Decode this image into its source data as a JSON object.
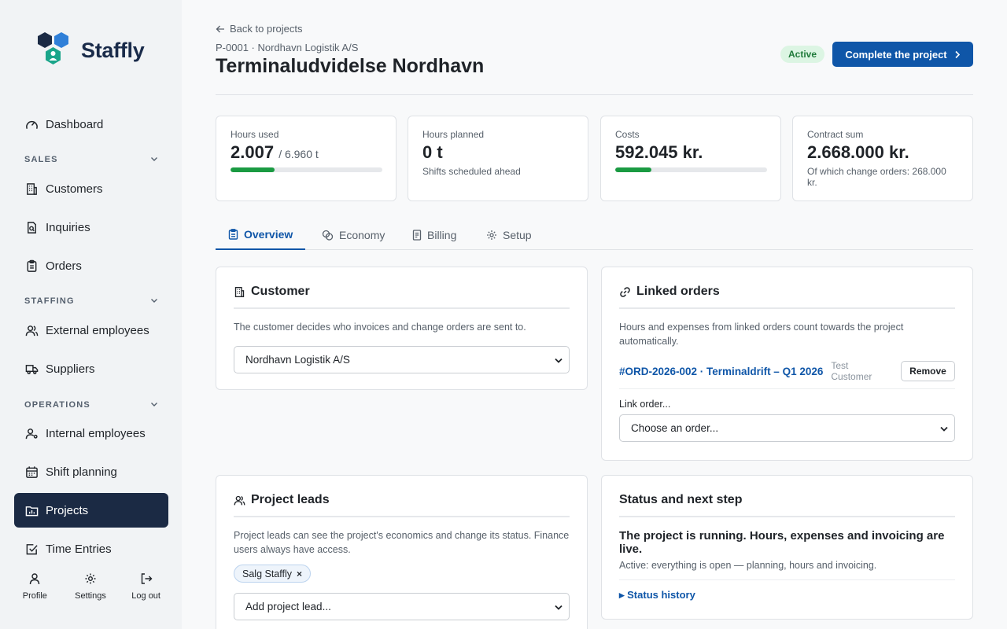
{
  "brand": {
    "name": "Staffly"
  },
  "sidebar": {
    "dashboard": "Dashboard",
    "sales_header": "SALES",
    "customers": "Customers",
    "inquiries": "Inquiries",
    "orders": "Orders",
    "staffing_header": "STAFFING",
    "external_employees": "External employees",
    "suppliers": "Suppliers",
    "operations_header": "OPERATIONS",
    "internal_employees": "Internal employees",
    "shift_planning": "Shift planning",
    "projects": "Projects",
    "time_entries": "Time Entries",
    "bottom": {
      "profile": "Profile",
      "settings": "Settings",
      "logout": "Log out"
    }
  },
  "header": {
    "back": "Back to projects",
    "subtitle": "P-0001 · Nordhavn Logistik A/S",
    "title": "Terminaludvidelse Nordhavn",
    "status_badge": "Active",
    "complete_button": "Complete the project"
  },
  "stats": {
    "hours_used": {
      "label": "Hours used",
      "value": "2.007",
      "total": "/ 6.960 t",
      "progress": 0.29
    },
    "hours_planned": {
      "label": "Hours planned",
      "value": "0 t",
      "sub": "Shifts scheduled ahead"
    },
    "costs": {
      "label": "Costs",
      "value": "592.045 kr.",
      "progress": 0.24
    },
    "contract": {
      "label": "Contract sum",
      "value": "2.668.000 kr.",
      "sub": "Of which change orders: 268.000 kr."
    }
  },
  "tabs": {
    "overview": "Overview",
    "economy": "Economy",
    "billing": "Billing",
    "setup": "Setup"
  },
  "customer_card": {
    "title": "Customer",
    "text": "The customer decides who invoices and change orders are sent to.",
    "selected": "Nordhavn Logistik A/S"
  },
  "linked_orders": {
    "title": "Linked orders",
    "text": "Hours and expenses from linked orders count towards the project automatically.",
    "order_link": "#ORD-2026-002 · Terminaldrift – Q1 2026",
    "order_customer_line1": "Test",
    "order_customer_line2": "Customer",
    "remove": "Remove",
    "link_label": "Link order...",
    "select_placeholder": "Choose an order..."
  },
  "project_leads": {
    "title": "Project leads",
    "text": "Project leads can see the project's economics and change its status. Finance users always have access.",
    "chip": "Salg Staffly",
    "chip_remove": "×",
    "select_placeholder": "Add project lead..."
  },
  "status_card": {
    "title": "Status and next step",
    "headline": "The project is running. Hours, expenses and invoicing are live.",
    "text": "Active: everything is open — planning, hours and invoicing.",
    "history": "▸ Status history"
  },
  "colors": {
    "primary": "#0f56a8",
    "sidebar_active": "#1b2a44",
    "progress": "#1a9a42",
    "badge_bg": "#dcf5e3"
  }
}
